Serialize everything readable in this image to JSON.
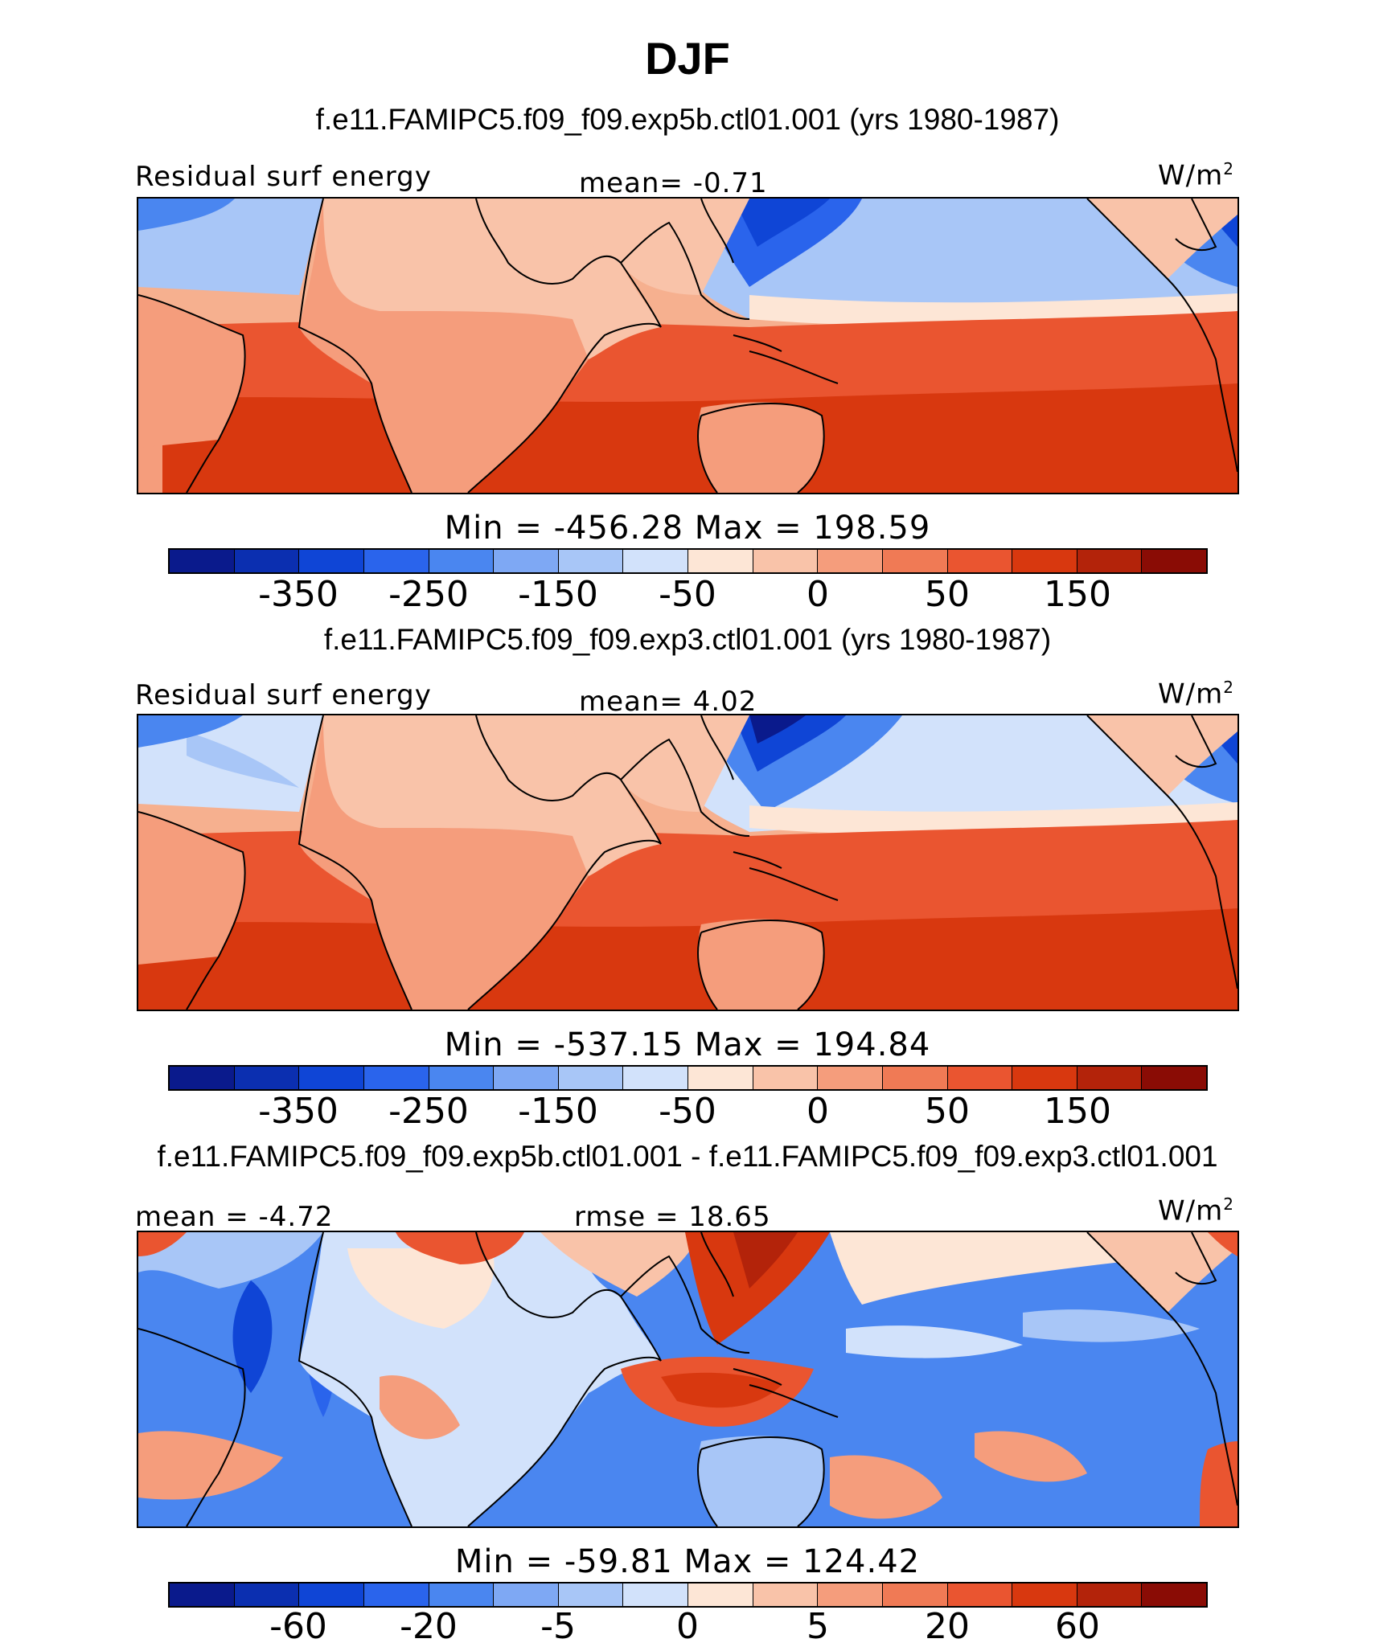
{
  "season": "DJF",
  "panels": [
    {
      "title": "f.e11.FAMIPC5.f09_f09.exp5b.ctl01.001 (yrs 1980-1987)",
      "left_label": "Residual surf energy",
      "center_label": "mean=   -0.71",
      "units": "W/m",
      "units_sup": "2",
      "minmax": "Min  =  -456.28  Max  =  198.59",
      "colorbar_ticks": [
        "-350",
        "-250",
        "-150",
        "-50",
        "0",
        "50",
        "150"
      ]
    },
    {
      "title": "f.e11.FAMIPC5.f09_f09.exp3.ctl01.001 (yrs 1980-1987)",
      "left_label": "Residual surf energy",
      "center_label": "mean=    4.02",
      "units": "W/m",
      "units_sup": "2",
      "minmax": "Min  =  -537.15  Max  =  194.84",
      "colorbar_ticks": [
        "-350",
        "-250",
        "-150",
        "-50",
        "0",
        "50",
        "150"
      ]
    },
    {
      "title": "f.e11.FAMIPC5.f09_f09.exp5b.ctl01.001 - f.e11.FAMIPC5.f09_f09.exp3.ctl01.001",
      "left_label": "mean =   -4.72",
      "center_label": "rmse  =   18.65",
      "units": "W/m",
      "units_sup": "2",
      "minmax": "Min  =  -59.81  Max  =  124.42",
      "colorbar_ticks": [
        "-60",
        "-20",
        "-5",
        "0",
        "5",
        "20",
        "60"
      ]
    }
  ],
  "colors": {
    "colorbar": [
      "#0a1a8c",
      "#0b2fb0",
      "#0f45d6",
      "#2a64ec",
      "#4a86f0",
      "#7ea8f4",
      "#a8c6f7",
      "#d2e2fb",
      "#fde6d6",
      "#f9c3a9",
      "#f59d7c",
      "#f07a55",
      "#ea5530",
      "#d8380f",
      "#b3230a",
      "#8a0c05"
    ]
  }
}
